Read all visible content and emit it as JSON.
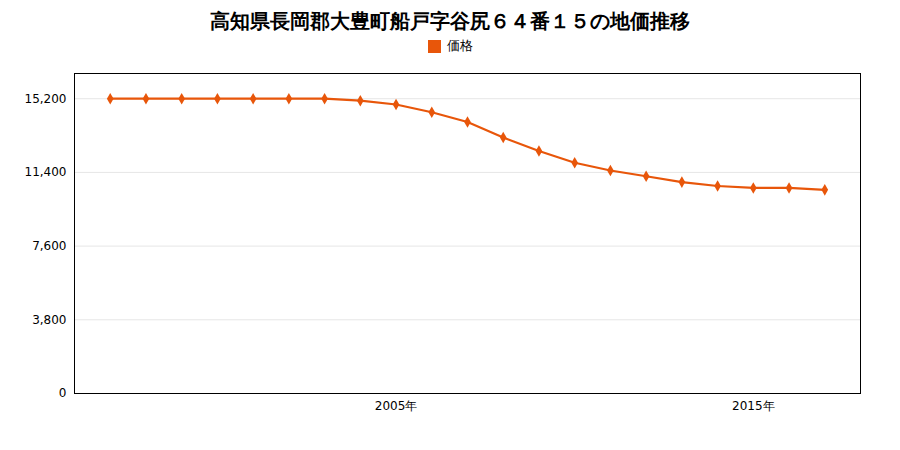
{
  "chart_data": {
    "type": "line",
    "title": "高知県長岡郡大豊町船戸字谷尻６４番１５の地価推移",
    "x": [
      1997,
      1998,
      1999,
      2000,
      2001,
      2002,
      2003,
      2004,
      2005,
      2006,
      2007,
      2008,
      2009,
      2010,
      2011,
      2012,
      2013,
      2014,
      2015,
      2016,
      2017
    ],
    "series": [
      {
        "name": "価格",
        "color": "#e8560a",
        "marker": "diamond",
        "values": [
          15200,
          15200,
          15200,
          15200,
          15200,
          15200,
          15200,
          15100,
          14900,
          14500,
          14000,
          13200,
          12500,
          11900,
          11500,
          11200,
          10900,
          10700,
          10600,
          10600,
          10500
        ]
      }
    ],
    "xlim": [
      1996,
      2018
    ],
    "xticks": [
      {
        "value": 2005,
        "label": "2005年"
      },
      {
        "value": 2015,
        "label": "2015年"
      }
    ],
    "ylim": [
      0,
      16500
    ],
    "yticks": [
      0,
      {
        "value": 3800,
        "label": "3,800"
      },
      {
        "value": 7600,
        "label": "7,600"
      },
      {
        "value": 11400,
        "label": "11,400"
      },
      {
        "value": 15200,
        "label": "15,200"
      }
    ],
    "grid": true,
    "legend": "top"
  }
}
